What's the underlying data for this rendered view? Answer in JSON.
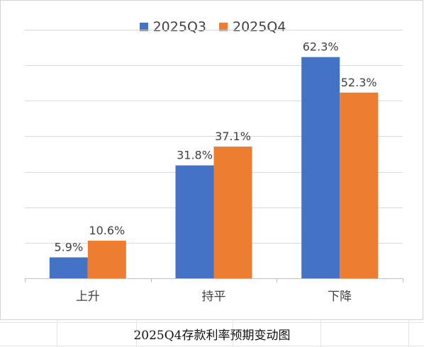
{
  "caption": "2025Q4存款利率预期变动图",
  "colors": {
    "series_1": "#4472C4",
    "series_2": "#ED7D31",
    "gridline": "#d9d9d9",
    "axis": "#bfbfbf",
    "text": "#404040"
  },
  "chart_data": {
    "type": "bar",
    "categories": [
      "上升",
      "持平",
      "下降"
    ],
    "series": [
      {
        "name": "2025Q3",
        "values": [
          5.9,
          31.8,
          62.3
        ],
        "labels": [
          "5.9%",
          "31.8%",
          "62.3%"
        ]
      },
      {
        "name": "2025Q4",
        "values": [
          10.6,
          37.1,
          52.3
        ],
        "labels": [
          "10.6%",
          "37.1%",
          "52.3%"
        ]
      }
    ],
    "ylim": [
      0,
      70
    ],
    "ytick_step": 10,
    "yaxis_labels_shown": false,
    "grid": true,
    "legend_position": "top-center",
    "data_labels": true
  }
}
